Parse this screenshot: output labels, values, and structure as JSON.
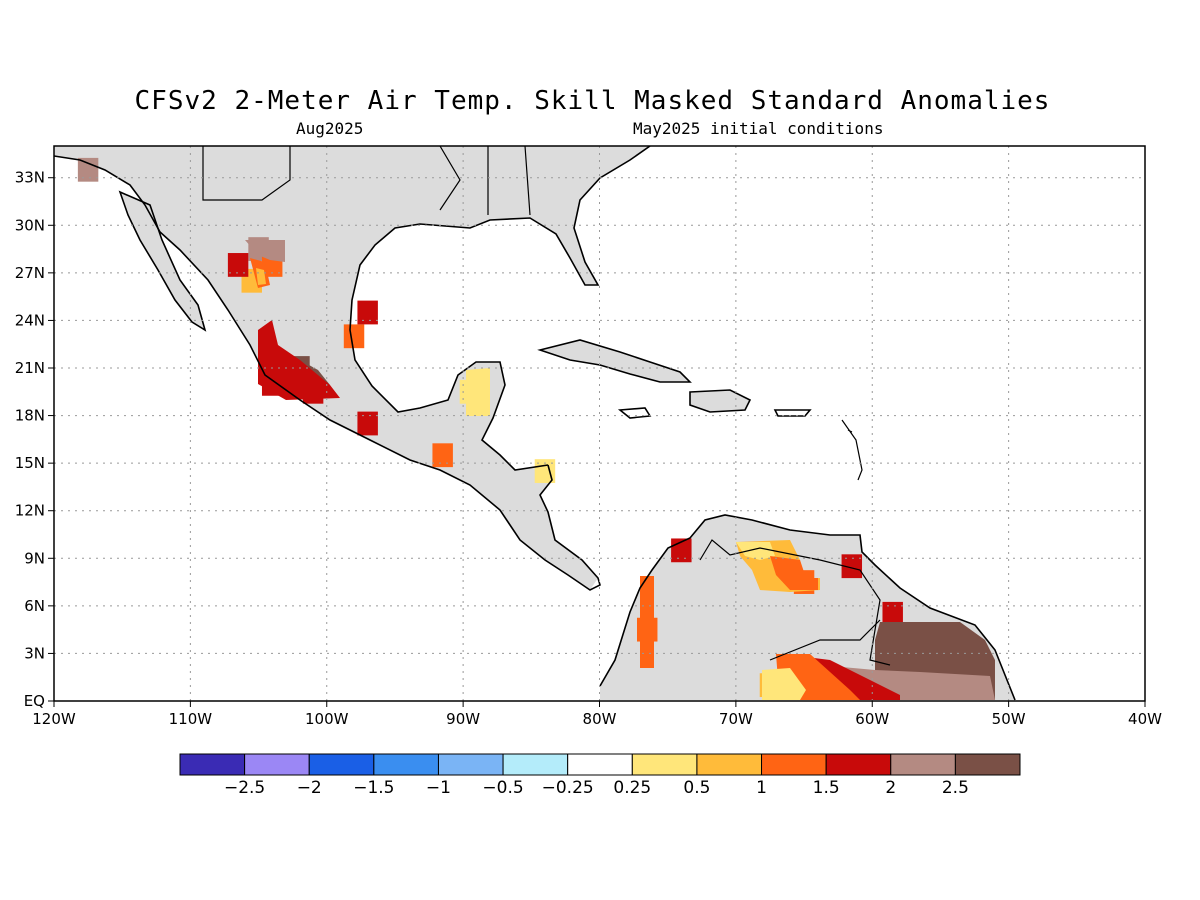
{
  "title": "CFSv2 2-Meter Air Temp. Skill Masked Standard Anomalies",
  "valid_month": "Aug2025",
  "initial_conditions": "May2025 initial conditions",
  "map": {
    "lon_range": [
      -120,
      -40
    ],
    "lat_range": [
      0,
      35
    ],
    "lon_ticks": [
      {
        "v": -120,
        "label": "120W"
      },
      {
        "v": -110,
        "label": "110W"
      },
      {
        "v": -100,
        "label": "100W"
      },
      {
        "v": -90,
        "label": "90W"
      },
      {
        "v": -80,
        "label": "80W"
      },
      {
        "v": -70,
        "label": "70W"
      },
      {
        "v": -60,
        "label": "60W"
      },
      {
        "v": -50,
        "label": "50W"
      },
      {
        "v": -40,
        "label": "40W"
      }
    ],
    "lat_ticks": [
      {
        "v": 0,
        "label": "EQ"
      },
      {
        "v": 3,
        "label": "3N"
      },
      {
        "v": 6,
        "label": "6N"
      },
      {
        "v": 9,
        "label": "9N"
      },
      {
        "v": 12,
        "label": "12N"
      },
      {
        "v": 15,
        "label": "15N"
      },
      {
        "v": 18,
        "label": "18N"
      },
      {
        "v": 21,
        "label": "21N"
      },
      {
        "v": 24,
        "label": "24N"
      },
      {
        "v": 27,
        "label": "27N"
      },
      {
        "v": 30,
        "label": "30N"
      },
      {
        "v": 33,
        "label": "33N"
      }
    ],
    "grid": "dotted",
    "masked_color": "#dcdcdc"
  },
  "colorbar": {
    "colors": [
      "#3a2bb4",
      "#9b87f5",
      "#1a5fe6",
      "#3a8ef0",
      "#7ab4f5",
      "#b4ecfa",
      "#ffffff",
      "#ffe67a",
      "#ffbb3a",
      "#ff6414",
      "#c80a0a",
      "#b48a82",
      "#7a5046"
    ],
    "labels": [
      "-2.5",
      "-2",
      "-1.5",
      "-1",
      "-0.5",
      "-0.25",
      "0.25",
      "0.5",
      "1",
      "1.5",
      "2",
      "2.5"
    ]
  },
  "chart_data": {
    "type": "heatmap",
    "title": "CFSv2 2-Meter Air Temp. Skill Masked Standard Anomalies",
    "subtitle": "Aug2025 — May2025 initial conditions",
    "xlim": [
      -120,
      -40
    ],
    "ylim": [
      0,
      35
    ],
    "units": "standard anomaly",
    "cells": [
      {
        "lon": -117.5,
        "lat": 33.5,
        "value": 2.2
      },
      {
        "lon": -105.0,
        "lat": 28.5,
        "value": 2.3
      },
      {
        "lon": -104.0,
        "lat": 27.5,
        "value": 1.4
      },
      {
        "lon": -105.5,
        "lat": 26.5,
        "value": 0.8
      },
      {
        "lon": -106.5,
        "lat": 27.5,
        "value": 1.8
      },
      {
        "lon": -98.0,
        "lat": 23.0,
        "value": 1.2
      },
      {
        "lon": -97.0,
        "lat": 24.5,
        "value": 1.8
      },
      {
        "lon": -102.0,
        "lat": 21.0,
        "value": 2.7
      },
      {
        "lon": -104.0,
        "lat": 20.0,
        "value": 1.8
      },
      {
        "lon": -101.0,
        "lat": 19.5,
        "value": 1.6
      },
      {
        "lon": -97.0,
        "lat": 17.5,
        "value": 1.5
      },
      {
        "lon": -91.5,
        "lat": 15.5,
        "value": 1.2
      },
      {
        "lon": -89.5,
        "lat": 19.5,
        "value": 0.4
      },
      {
        "lon": -84.0,
        "lat": 14.5,
        "value": 0.3
      },
      {
        "lon": -76.5,
        "lat": 4.5,
        "value": 1.3
      },
      {
        "lon": -74.0,
        "lat": 9.5,
        "value": 1.8
      },
      {
        "lon": -66.5,
        "lat": 8.0,
        "value": 0.8
      },
      {
        "lon": -65.0,
        "lat": 7.5,
        "value": 1.2
      },
      {
        "lon": -61.5,
        "lat": 8.5,
        "value": 1.8
      },
      {
        "lon": -58.5,
        "lat": 5.5,
        "value": 1.8
      },
      {
        "lon": -55.0,
        "lat": 3.0,
        "value": 2.7
      },
      {
        "lon": -57.0,
        "lat": 1.0,
        "value": 2.3
      },
      {
        "lon": -62.5,
        "lat": 1.0,
        "value": 1.8
      },
      {
        "lon": -65.5,
        "lat": 1.5,
        "value": 1.2
      },
      {
        "lon": -67.5,
        "lat": 1.0,
        "value": 0.6
      }
    ]
  }
}
